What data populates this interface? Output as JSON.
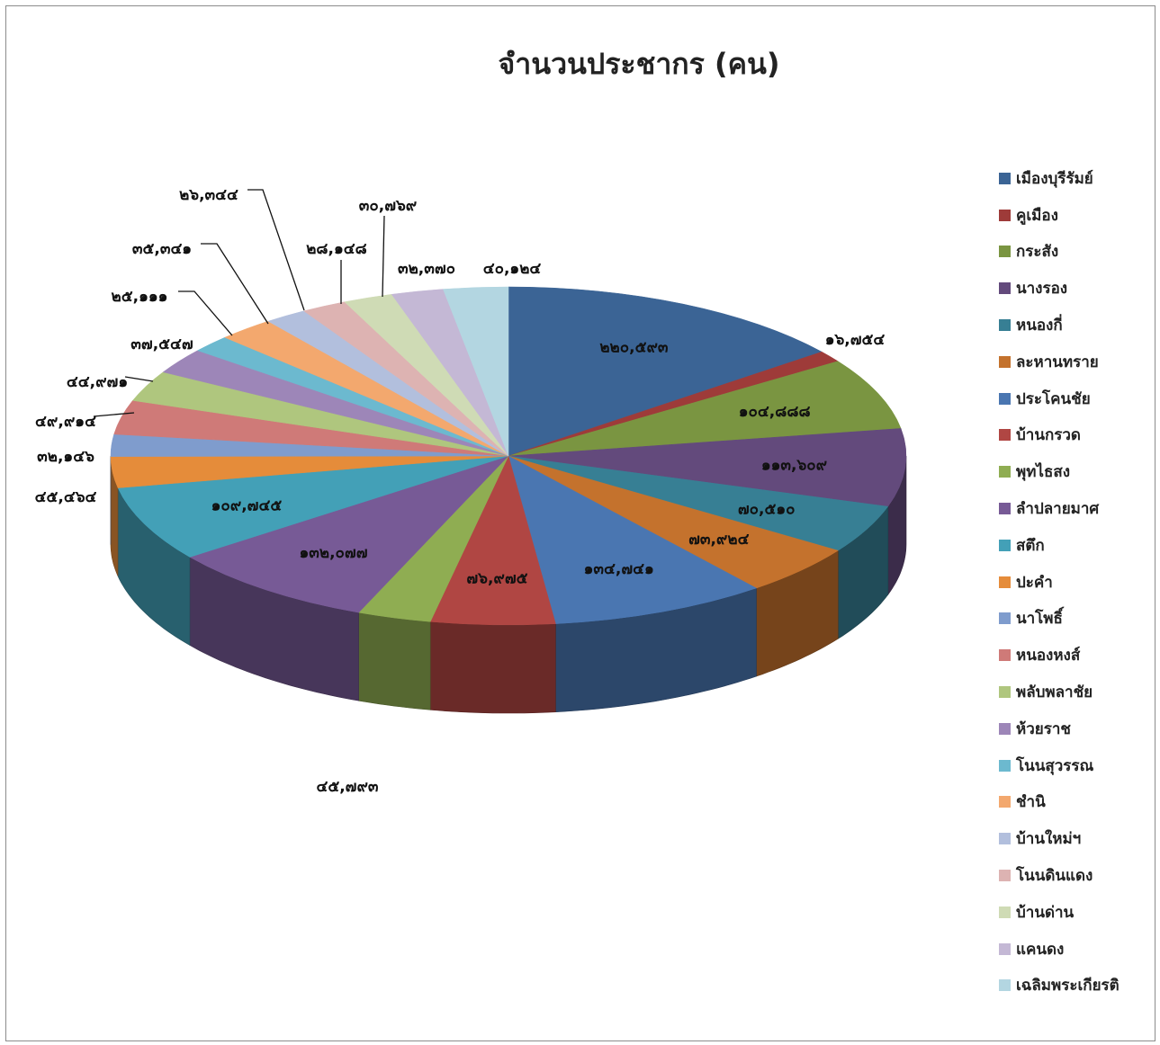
{
  "chart_data": {
    "type": "pie",
    "title": "จำนวนประชากร (คน)",
    "legend_position": "right",
    "slices": [
      {
        "name": "เมืองบุรีรัมย์",
        "value": 220593,
        "label": "๒๒๐,๕๙๓",
        "color": "#3B6495"
      },
      {
        "name": "คูเมือง",
        "value": 16754,
        "label": "๑๖,๗๕๔",
        "color": "#9E3B39"
      },
      {
        "name": "กระสัง",
        "value": 104888,
        "label": "๑๐๔,๘๘๘",
        "color": "#7A9541"
      },
      {
        "name": "นางรอง",
        "value": 113609,
        "label": "๑๑๓,๖๐๙",
        "color": "#634A7C"
      },
      {
        "name": "หนองกี่",
        "value": 70510,
        "label": "๗๐,๕๑๐",
        "color": "#377F94"
      },
      {
        "name": "ละหานทราย",
        "value": 73924,
        "label": "๗๓,๙๒๔",
        "color": "#C4722D"
      },
      {
        "name": "ประโคนชัย",
        "value": 134741,
        "label": "๑๓๔,๗๔๑",
        "color": "#4A76B1"
      },
      {
        "name": "บ้านกรวด",
        "value": 76975,
        "label": "๗๖,๙๗๕",
        "color": "#B04643"
      },
      {
        "name": "พุทไธสง",
        "value": 45793,
        "label": "๔๕,๗๙๓",
        "color": "#8FAD52"
      },
      {
        "name": "ลำปลายมาศ",
        "value": 132077,
        "label": "๑๓๒,๐๗๗",
        "color": "#775A96"
      },
      {
        "name": "สตึก",
        "value": 109745,
        "label": "๑๐๙,๗๔๕",
        "color": "#43A0B7"
      },
      {
        "name": "ปะคำ",
        "value": 45464,
        "label": "๔๕,๔๖๔",
        "color": "#E58C3A"
      },
      {
        "name": "นาโพธิ์",
        "value": 32146,
        "label": "๓๒,๑๔๖",
        "color": "#7F9CCD"
      },
      {
        "name": "หนองหงส์",
        "value": 49914,
        "label": "๔๙,๙๑๔",
        "color": "#CF7A78"
      },
      {
        "name": "พลับพลาชัย",
        "value": 44971,
        "label": "๔๔,๙๗๑",
        "color": "#AFC67E"
      },
      {
        "name": "ห้วยราช",
        "value": 37547,
        "label": "๓๗,๕๔๗",
        "color": "#9D86B8"
      },
      {
        "name": "โนนสุวรรณ",
        "value": 25111,
        "label": "๒๕,๑๑๑",
        "color": "#6CB9CF"
      },
      {
        "name": "ชำนิ",
        "value": 35341,
        "label": "๓๕,๓๔๑",
        "color": "#F3A86E"
      },
      {
        "name": "บ้านใหม่ฯ",
        "value": 26344,
        "label": "๒๖,๓๔๔",
        "color": "#B2BFDD"
      },
      {
        "name": "โนนดินแดง",
        "value": 28148,
        "label": "๒๘,๑๔๘",
        "color": "#DDB3B2"
      },
      {
        "name": "บ้านด่าน",
        "value": 30769,
        "label": "๓๐,๗๖๙",
        "color": "#CFDBB5"
      },
      {
        "name": "แคนดง",
        "value": 32370,
        "label": "๓๒,๓๗๐",
        "color": "#C4B8D5"
      },
      {
        "name": "เฉลิมพระเกียรติ",
        "value": 40124,
        "label": "๔๐,๑๒๔",
        "color": "#B3D6E1"
      }
    ]
  }
}
